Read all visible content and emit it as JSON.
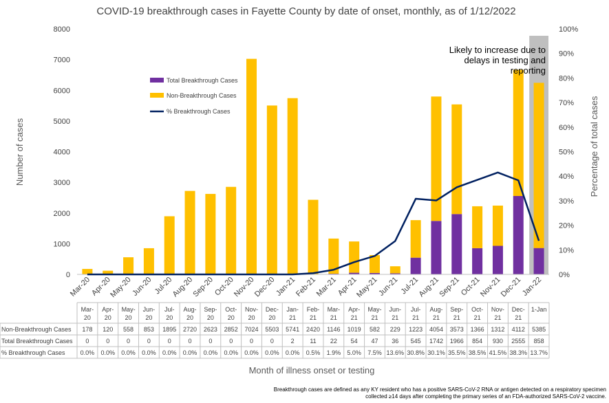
{
  "chart_data": {
    "type": "bar",
    "title": "COVID-19 breakthrough cases in Fayette County by date of onset, monthly, as of 1/12/2022",
    "xlabel": "Month of illness onset or testing",
    "ylabel": "Number of cases",
    "y2label": "Percentage of total cases",
    "ylim": [
      0,
      8000
    ],
    "y2lim": [
      0,
      100
    ],
    "yticks": [
      "0",
      "1000",
      "2000",
      "3000",
      "4000",
      "5000",
      "6000",
      "7000",
      "8000"
    ],
    "y2ticks": [
      "0%",
      "10%",
      "20%",
      "30%",
      "40%",
      "50%",
      "60%",
      "70%",
      "80%",
      "90%",
      "100%"
    ],
    "categories": [
      "Mar-20",
      "Apr-20",
      "May-20",
      "Jun-20",
      "Jul-20",
      "Aug-20",
      "Sep-20",
      "Oct-20",
      "Nov-20",
      "Dec-20",
      "Jan-21",
      "Feb-21",
      "Mar-21",
      "Apr-21",
      "May-21",
      "Jun-21",
      "Jul-21",
      "Aug-21",
      "Sep-21",
      "Oct-21",
      "Nov-21",
      "Dec-21",
      "Jan-22"
    ],
    "table_headers": [
      [
        "Mar-",
        "20"
      ],
      [
        "Apr-",
        "20"
      ],
      [
        "May-",
        "20"
      ],
      [
        "Jun-",
        "20"
      ],
      [
        "Jul-",
        "20"
      ],
      [
        "Aug-",
        "20"
      ],
      [
        "Sep-",
        "20"
      ],
      [
        "Oct-",
        "20"
      ],
      [
        "Nov-",
        "20"
      ],
      [
        "Dec-",
        "20"
      ],
      [
        "Jan-",
        "21"
      ],
      [
        "Feb-",
        "21"
      ],
      [
        "Mar-",
        "21"
      ],
      [
        "Apr-",
        "21"
      ],
      [
        "May-",
        "21"
      ],
      [
        "Jun-",
        "21"
      ],
      [
        "Jul-",
        "21"
      ],
      [
        "Aug-",
        "21"
      ],
      [
        "Sep-",
        "21"
      ],
      [
        "Oct-",
        "21"
      ],
      [
        "Nov-",
        "21"
      ],
      [
        "Dec-",
        "21"
      ],
      [
        "1-Jan",
        ""
      ]
    ],
    "series": [
      {
        "name": "Total Breakthrough Cases",
        "type": "bar-stacked",
        "color": "#7030A0",
        "values": [
          0,
          0,
          0,
          0,
          0,
          0,
          0,
          0,
          0,
          0,
          2,
          11,
          22,
          54,
          47,
          36,
          545,
          1742,
          1966,
          854,
          930,
          2555,
          858
        ]
      },
      {
        "name": "Non-Breakthrough Cases",
        "type": "bar-stacked",
        "color": "#FFC000",
        "values": [
          178,
          120,
          558,
          853,
          1895,
          2720,
          2623,
          2852,
          7024,
          5503,
          5741,
          2420,
          1146,
          1019,
          582,
          229,
          1223,
          4054,
          3573,
          1366,
          1312,
          4112,
          5385
        ]
      },
      {
        "name": "% Breakthrough Cases",
        "type": "line",
        "axis": "secondary",
        "color": "#002060",
        "values": [
          0,
          0,
          0,
          0,
          0,
          0,
          0,
          0,
          0,
          0,
          0,
          0.5,
          1.9,
          5.0,
          7.5,
          13.6,
          30.8,
          30.1,
          35.5,
          38.5,
          41.5,
          38.3,
          13.7
        ]
      }
    ],
    "table_rows": [
      {
        "label": "Non-Breakthrough Cases",
        "cells": [
          "178",
          "120",
          "558",
          "853",
          "1895",
          "2720",
          "2623",
          "2852",
          "7024",
          "5503",
          "5741",
          "2420",
          "1146",
          "1019",
          "582",
          "229",
          "1223",
          "4054",
          "3573",
          "1366",
          "1312",
          "4112",
          "5385"
        ]
      },
      {
        "label": "Total Breakthrough Cases",
        "cells": [
          "0",
          "0",
          "0",
          "0",
          "0",
          "0",
          "0",
          "0",
          "0",
          "0",
          "2",
          "11",
          "22",
          "54",
          "47",
          "36",
          "545",
          "1742",
          "1966",
          "854",
          "930",
          "2555",
          "858"
        ]
      },
      {
        "label": "% Breakthrough Cases",
        "cells": [
          "0.0%",
          "0.0%",
          "0.0%",
          "0.0%",
          "0.0%",
          "0.0%",
          "0.0%",
          "0.0%",
          "0.0%",
          "0.0%",
          "0.0%",
          "0.5%",
          "1.9%",
          "5.0%",
          "7.5%",
          "13.6%",
          "30.8%",
          "30.1%",
          "35.5%",
          "38.5%",
          "41.5%",
          "38.3%",
          "13.7%"
        ]
      }
    ],
    "annotation": [
      "Likely to increase due to",
      "delays in testing and",
      "reporting"
    ],
    "highlight_color": "#BFBFBF",
    "legend_position": "upper-left inside plot",
    "grid": false
  },
  "footnote": [
    "Breakthrough cases are defined as any KY resident who has a positive SARS-CoV-2 RNA or antigen detected on a respiratory specimen",
    "collected ≥14 days after completing the primary series of an FDA-authorized SARS-CoV-2 vaccine."
  ]
}
